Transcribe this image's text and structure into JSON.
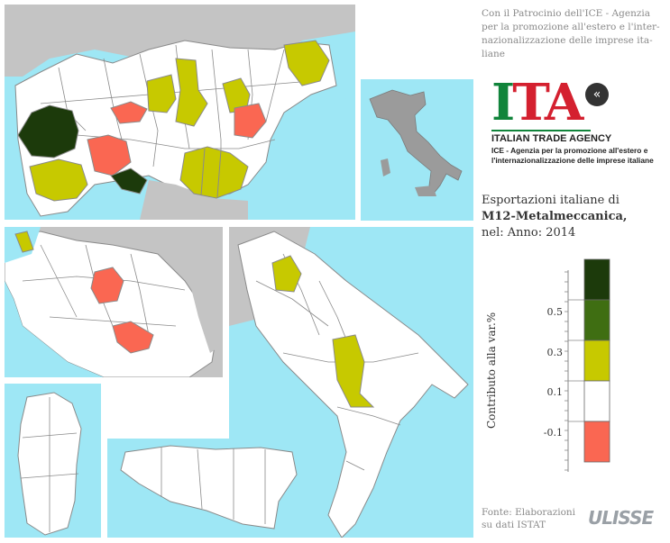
{
  "header": {
    "patronage_text": "Con il Patrocinio dell'ICE - Agenzia per la promozione all'estero e l'inter-nazionalizzazione delle imprese ita-liane"
  },
  "logo": {
    "letter_i": "I",
    "letters_ta": "TA",
    "mark_glyph": "«",
    "agency_name": "ITALIAN TRADE AGENCY",
    "agency_subtitle": "ICE - Agenzia per la promozione all'estero e l'internazionalizzazione delle imprese italiane"
  },
  "title": {
    "line1": "Esportazioni italiane di",
    "line2": "M12-Metalmeccanica,",
    "line3": "nel: Anno: 2014"
  },
  "legend": {
    "axis_label": "Contributo alla var.%",
    "ticks": [
      "0.5",
      "0.3",
      "0.1",
      "-0.1"
    ],
    "classes": [
      {
        "color": "#1c3a0b",
        "label": "> 0.5"
      },
      {
        "color": "#3f6e12",
        "label": "0.3 – 0.5"
      },
      {
        "color": "#c7c900",
        "label": "0.1 – 0.3"
      },
      {
        "color": "#ffffff",
        "label": "-0.1 – 0.1"
      },
      {
        "color": "#fa6752",
        "label": "< -0.1"
      }
    ]
  },
  "footer": {
    "source_text": "Fonte: Elaborazioni su dati ISTAT",
    "brand": "ULISSE"
  },
  "colors": {
    "sea": "#9ee7f5",
    "land_other": "#c4c4c4",
    "province_default": "#ffffff",
    "border": "#8a8a8a"
  }
}
